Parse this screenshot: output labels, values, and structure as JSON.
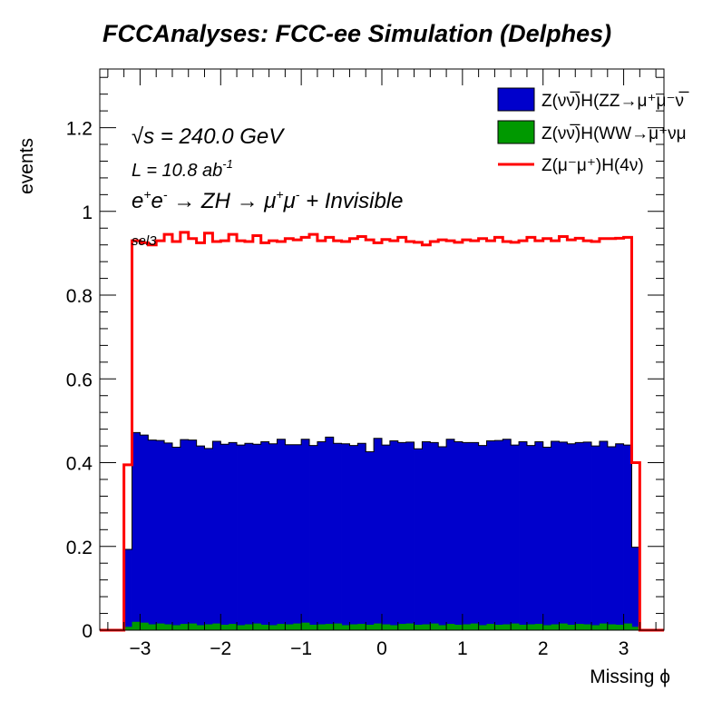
{
  "chart_data": {
    "type": "histogram",
    "title": "FCCAnalyses: FCC-ee Simulation (Delphes)",
    "xlabel": "Missing ϕ",
    "ylabel": "events",
    "xlim": [
      -3.5,
      3.5
    ],
    "ylim": [
      0,
      1.34
    ],
    "x_ticks": [
      -3,
      -2,
      -1,
      0,
      1,
      2,
      3
    ],
    "x_tick_labels": [
      "−3",
      "−2",
      "−1",
      "0",
      "1",
      "2",
      "3"
    ],
    "y_ticks": [
      0,
      0.2,
      0.4,
      0.6,
      0.8,
      1.0,
      1.2
    ],
    "y_tick_labels": [
      "0",
      "0.2",
      "0.4",
      "0.6",
      "0.8",
      "1",
      "1.2"
    ],
    "bins": {
      "start": -3.2,
      "stop": 3.2,
      "count": 64
    },
    "annotations": {
      "sqrt_s_symbol": "√s",
      "sqrt_s_value": " = 240.0 GeV",
      "lumi_prefix": "L = 10.8 ab",
      "lumi_exp": "-1",
      "process_e": "e",
      "process_eplus": "+",
      "process_eminus": "-",
      "process_arrow1": " → ZH → ",
      "process_mu": "μ",
      "process_muplus": "+",
      "process_muminus": "-",
      "process_tail": " + Invisible",
      "selection": "sel3"
    },
    "series": [
      {
        "name": "Z(νν̅)H(ZZ→μ⁺μ⁻ν̅",
        "style": "stacked-fill",
        "color": "#0000cc",
        "values": [
          0.185,
          0.452,
          0.448,
          0.44,
          0.437,
          0.433,
          0.425,
          0.44,
          0.438,
          0.428,
          0.42,
          0.435,
          0.431,
          0.433,
          0.43,
          0.432,
          0.428,
          0.437,
          0.433,
          0.441,
          0.429,
          0.427,
          0.438,
          0.428,
          0.436,
          0.446,
          0.43,
          0.433,
          0.427,
          0.431,
          0.413,
          0.442,
          0.428,
          0.44,
          0.433,
          0.433,
          0.42,
          0.436,
          0.432,
          0.426,
          0.441,
          0.437,
          0.434,
          0.432,
          0.429,
          0.437,
          0.44,
          0.442,
          0.426,
          0.437,
          0.427,
          0.435,
          0.425,
          0.437,
          0.433,
          0.432,
          0.433,
          0.435,
          0.428,
          0.435,
          0.424,
          0.432,
          0.426,
          0.19
        ]
      },
      {
        "name": "Z(νν̅)H(WW→μ⁺νμ",
        "style": "stacked-fill",
        "color": "#009900",
        "values": [
          0.008,
          0.02,
          0.018,
          0.014,
          0.016,
          0.014,
          0.012,
          0.015,
          0.016,
          0.012,
          0.014,
          0.016,
          0.013,
          0.015,
          0.012,
          0.014,
          0.016,
          0.013,
          0.012,
          0.015,
          0.014,
          0.016,
          0.018,
          0.013,
          0.014,
          0.015,
          0.016,
          0.012,
          0.014,
          0.015,
          0.013,
          0.016,
          0.014,
          0.012,
          0.015,
          0.016,
          0.013,
          0.014,
          0.016,
          0.012,
          0.015,
          0.013,
          0.014,
          0.016,
          0.012,
          0.015,
          0.013,
          0.014,
          0.016,
          0.013,
          0.014,
          0.015,
          0.012,
          0.014,
          0.016,
          0.013,
          0.015,
          0.014,
          0.012,
          0.016,
          0.014,
          0.013,
          0.016,
          0.008
        ]
      },
      {
        "name": "Z(μ⁻μ⁺)H(4ν)",
        "style": "line",
        "color": "#ff0000",
        "values": [
          0.395,
          0.93,
          0.925,
          0.92,
          0.93,
          0.945,
          0.928,
          0.95,
          0.935,
          0.925,
          0.948,
          0.928,
          0.93,
          0.945,
          0.93,
          0.928,
          0.942,
          0.925,
          0.93,
          0.928,
          0.935,
          0.932,
          0.938,
          0.945,
          0.93,
          0.938,
          0.93,
          0.928,
          0.935,
          0.94,
          0.932,
          0.925,
          0.933,
          0.93,
          0.938,
          0.928,
          0.926,
          0.92,
          0.928,
          0.932,
          0.93,
          0.926,
          0.932,
          0.93,
          0.935,
          0.93,
          0.938,
          0.928,
          0.926,
          0.93,
          0.938,
          0.93,
          0.935,
          0.93,
          0.94,
          0.932,
          0.936,
          0.93,
          0.928,
          0.935,
          0.935,
          0.936,
          0.938,
          0.4
        ]
      }
    ],
    "legend_position": "top-right"
  }
}
